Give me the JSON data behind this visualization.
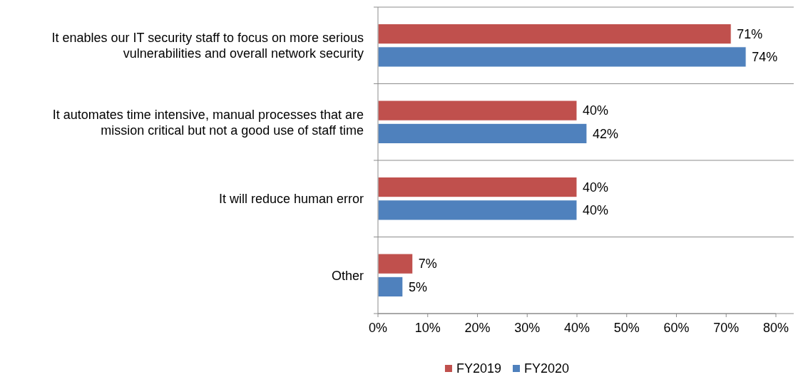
{
  "chart_data": {
    "type": "bar",
    "orientation": "horizontal",
    "categories": [
      "It enables our IT security staff to focus on more serious vulnerabilities and overall network security",
      "It automates time intensive, manual processes that are mission critical but not a good use of staff time",
      "It will reduce human error",
      "Other"
    ],
    "series": [
      {
        "name": "FY2019",
        "color": "#c0504d",
        "values": [
          71,
          40,
          40,
          7
        ]
      },
      {
        "name": "FY2020",
        "color": "#4f81bd",
        "values": [
          74,
          42,
          40,
          5
        ]
      }
    ],
    "xlim": [
      0,
      80
    ],
    "xticks": [
      {
        "value": 0,
        "label": "0%"
      },
      {
        "value": 10,
        "label": "10%"
      },
      {
        "value": 20,
        "label": "20%"
      },
      {
        "value": 30,
        "label": "30%"
      },
      {
        "value": 40,
        "label": "40%"
      },
      {
        "value": 50,
        "label": "50%"
      },
      {
        "value": 60,
        "label": "60%"
      },
      {
        "value": 70,
        "label": "70%"
      },
      {
        "value": 80,
        "label": "80%"
      }
    ],
    "value_labels": [
      [
        "71%",
        "40%",
        "40%",
        "7%"
      ],
      [
        "74%",
        "42%",
        "40%",
        "5%"
      ]
    ],
    "grid": "y",
    "legend": "bottom"
  }
}
